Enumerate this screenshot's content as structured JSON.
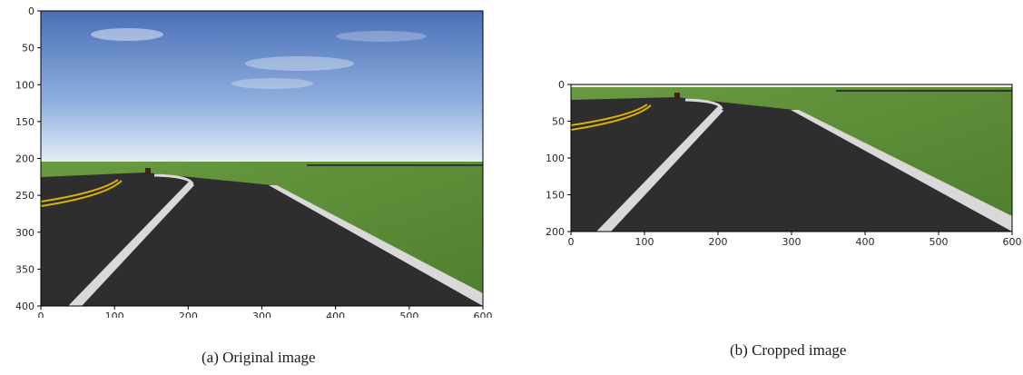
{
  "figures": [
    {
      "id": "original",
      "caption": "(a) Original image",
      "x_ticks": [
        "0",
        "100",
        "200",
        "300",
        "400",
        "500",
        "600"
      ],
      "y_ticks": [
        "0",
        "50",
        "100",
        "150",
        "200",
        "250",
        "300",
        "350",
        "400"
      ],
      "image_width": 600,
      "image_height": 400
    },
    {
      "id": "cropped",
      "caption": "(b) Cropped image",
      "x_ticks": [
        "0",
        "100",
        "200",
        "300",
        "400",
        "500",
        "600"
      ],
      "y_ticks": [
        "0",
        "50",
        "100",
        "150",
        "200"
      ],
      "image_width": 600,
      "image_height": 200
    }
  ],
  "colors": {
    "sky_top": "#4a6fb8",
    "sky_horizon": "#dfe9f6",
    "grass": "#5f8f3a",
    "asphalt": "#2e2e2e",
    "lane_white": "#d9d9d9",
    "lane_yellow": "#d9b400"
  }
}
